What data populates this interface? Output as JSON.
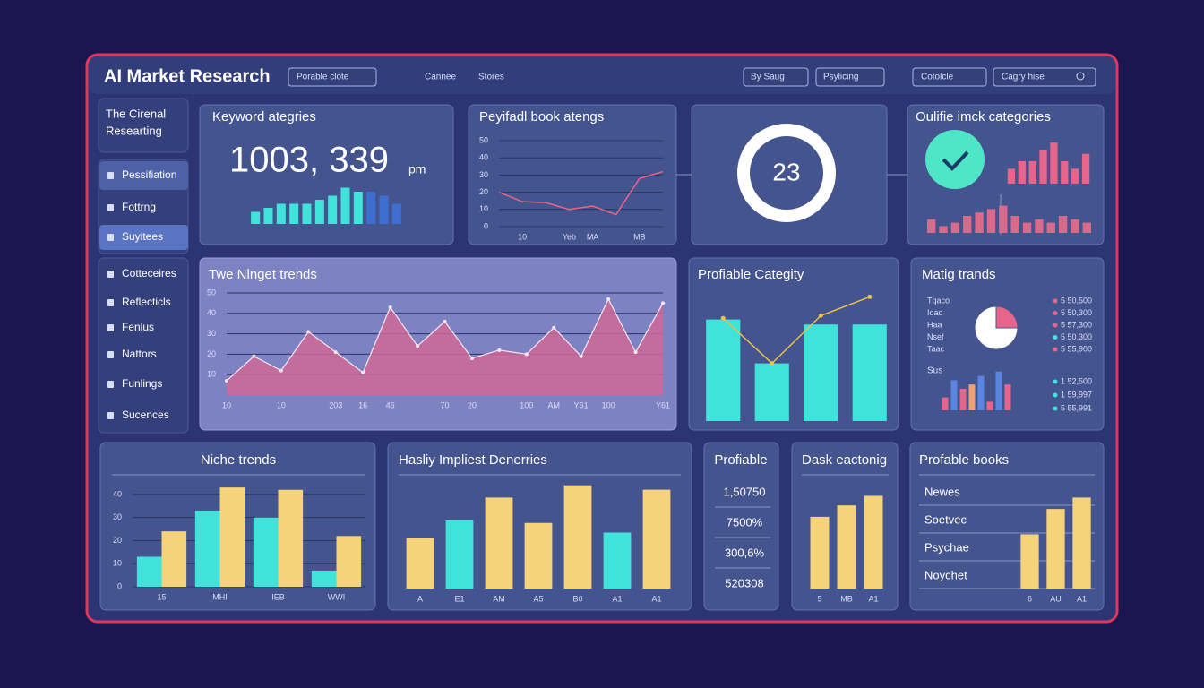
{
  "header": {
    "title": "AI Market Research",
    "filter": "Porable clote",
    "nav": [
      "Cannee",
      "Stores"
    ],
    "dropdowns": [
      "By Saug",
      "Psylicing",
      "Cotolcle"
    ],
    "search": "Cagry hise"
  },
  "sidebar": {
    "heading": [
      "The Cirenal",
      "Researting"
    ],
    "items": [
      "Pessifiation",
      "Fottrng",
      "Suyitees",
      "Cotteceires",
      "Reflecticls",
      "Fenlus",
      "Nattors",
      "Funlings",
      "Sucences"
    ]
  },
  "panels": {
    "matig_names": [
      "Tqaco",
      "Ioao",
      "Haa",
      "Nsef",
      "Taac"
    ],
    "matig_amounts": [
      "5 50,500",
      "5 50,300",
      "5 57,300",
      "5 50,300",
      "5 55,900"
    ],
    "matig_sub_label": "Sus",
    "matig_sub_amounts": [
      "1 52,500",
      "1 59,997",
      "5 55,991"
    ],
    "profiable": {
      "title": "Profiable",
      "rows": [
        "1,50750",
        "7500%",
        "300,6%",
        "520308"
      ]
    },
    "books_rows": [
      "Newes",
      "Soetvec",
      "Psychae",
      "Noychet"
    ]
  },
  "chart_data": [
    {
      "type": "bar",
      "title": "Keyword ategries",
      "metric": "1003, 339",
      "metric_unit": "pm",
      "values": [
        3,
        4,
        5,
        5,
        5,
        6,
        7,
        9,
        8,
        8,
        7,
        5
      ],
      "colors": [
        "#3fe3d9",
        "#3fe3d9",
        "#3fe3d9",
        "#3fe3d9",
        "#3fe3d9",
        "#3fe3d9",
        "#3fe3d9",
        "#3fe3d9",
        "#3fe3d9",
        "#3d6fd0",
        "#3d6fd0",
        "#3d6fd0"
      ],
      "ylim": [
        0,
        10
      ]
    },
    {
      "type": "line",
      "title": "Peyifadl book atengs",
      "categories": [
        null,
        "10",
        null,
        "Yeb",
        "MA",
        null,
        "MB",
        null
      ],
      "values": [
        20,
        14.5,
        14,
        10,
        12,
        7,
        28,
        32
      ],
      "color": "#e5668a",
      "ylim": [
        0,
        50
      ],
      "yticks": [
        0,
        10,
        20,
        30,
        40,
        50
      ],
      "grid": true
    },
    {
      "type": "ring",
      "value": 23,
      "color": "#ffffff"
    },
    {
      "type": "bar",
      "title": "Oulifie imck categories",
      "values": [
        4,
        6,
        6,
        9,
        11,
        6,
        4,
        8
      ],
      "color": "#e5668a",
      "ylim": [
        0,
        12
      ]
    },
    {
      "type": "bar",
      "values": [
        4,
        2,
        3,
        5,
        6,
        7,
        8,
        5,
        3,
        4,
        3,
        5,
        4,
        3
      ],
      "color": "#d86a8a",
      "ylim": [
        0,
        10
      ]
    },
    {
      "type": "area",
      "title": "Twe Nlnget trends",
      "categories": [
        "10",
        null,
        "10",
        null,
        "203",
        "16",
        "46",
        null,
        "70",
        "20",
        null,
        "100",
        "AM",
        "Y61",
        "100",
        null,
        "Y61"
      ],
      "values": [
        7,
        19,
        12,
        31,
        21,
        11,
        43,
        24,
        36,
        18,
        22,
        20,
        33,
        19,
        47,
        21,
        45
      ],
      "color": "#cf6898",
      "line_color": "#f4e8f0",
      "ylim": [
        0,
        50
      ],
      "yticks": [
        10,
        20,
        30,
        40,
        50
      ],
      "grid": true
    },
    {
      "type": "combo",
      "title": "Profiable Categity",
      "series": [
        {
          "type": "bar",
          "color": "#3fe3d9",
          "values": [
            8.1,
            4.6,
            7.7,
            7.7
          ]
        },
        {
          "type": "line",
          "color": "#e8c04a",
          "values": [
            8.2,
            4.6,
            8.4,
            9.9
          ]
        }
      ],
      "ylim": [
        0,
        10
      ]
    },
    {
      "type": "pie",
      "title": "Matig trands",
      "values": [
        25,
        75
      ],
      "colors": [
        "#e5668a",
        "#ffffff"
      ]
    },
    {
      "type": "bar",
      "values": [
        3,
        7,
        5,
        6,
        8,
        2,
        9,
        6
      ],
      "colors": [
        "#e5668a",
        "#5a86e0",
        "#e5668a",
        "#f0a070",
        "#5a86e0",
        "#e5668a",
        "#5a86e0",
        "#e5668a"
      ],
      "ylim": [
        0,
        10
      ]
    },
    {
      "type": "bar",
      "title": "Niche trends",
      "categories": [
        "15",
        "MHI",
        "IEB",
        "WWI"
      ],
      "series": [
        {
          "color": "#3fe3d9",
          "values": [
            13,
            33,
            30,
            7
          ]
        },
        {
          "color": "#f6d27a",
          "values": [
            24,
            43,
            42,
            22
          ]
        }
      ],
      "ylim": [
        0,
        45
      ],
      "yticks": [
        0,
        10,
        20,
        30,
        40
      ],
      "grid": true
    },
    {
      "type": "bar",
      "title": "Hasliy Impliest Denerries",
      "categories": [
        "A",
        "E1",
        "AM",
        "A5",
        "B0",
        "A1",
        "A1"
      ],
      "values": [
        58,
        78,
        104,
        75,
        118,
        64,
        113
      ],
      "colors": [
        "#f6d27a",
        "#3fe3d9",
        "#f6d27a",
        "#f6d27a",
        "#f6d27a",
        "#3fe3d9",
        "#f6d27a"
      ],
      "ylim": [
        0,
        130
      ]
    },
    {
      "type": "bar",
      "title": "Dask eactonig",
      "categories": [
        "5",
        "MB",
        "A1"
      ],
      "values": [
        82,
        95,
        106
      ],
      "color": "#f6d27a",
      "ylim": [
        0,
        130
      ]
    },
    {
      "type": "bar",
      "title": "Profable books",
      "categories": [
        "6",
        "AU",
        "A1"
      ],
      "values": [
        62,
        91,
        104
      ],
      "color": "#f6d27a",
      "ylim": [
        0,
        130
      ]
    }
  ]
}
